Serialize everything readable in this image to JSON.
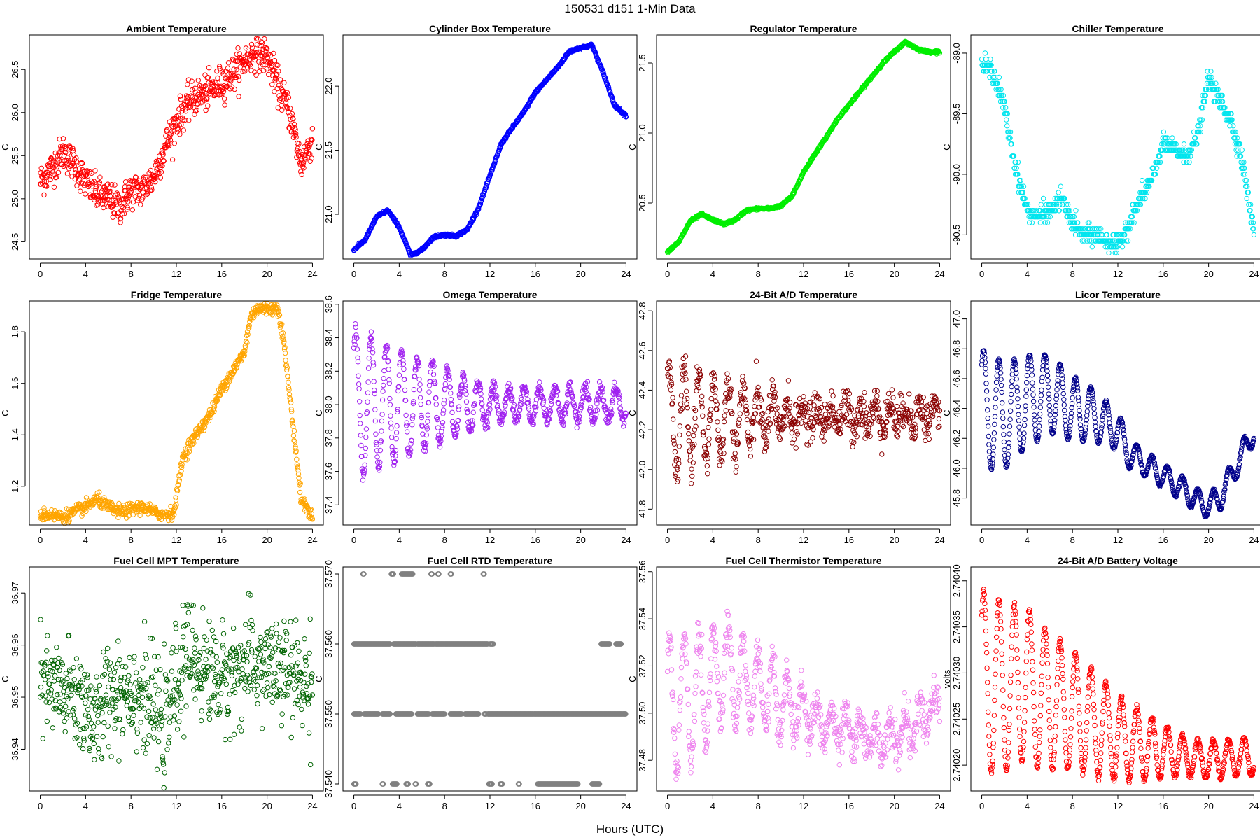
{
  "figure": {
    "suptitle": "150531    d151    1-Min Data",
    "xlabel": "Hours (UTC)"
  },
  "chart_data": [
    {
      "type": "scatter",
      "title": "Ambient Temperature",
      "ylabel": "C",
      "color": "#ff0000",
      "xlim": [
        0,
        24
      ],
      "ylim": [
        24.3,
        26.9
      ],
      "xticks": [
        "0",
        "4",
        "8",
        "12",
        "16",
        "20",
        "24"
      ],
      "yticks": [
        "24.5",
        "25.0",
        "25.5",
        "26.0",
        "26.5"
      ],
      "xtick_values": [
        0,
        4,
        8,
        12,
        16,
        20,
        24
      ],
      "ytick_values": [
        24.5,
        25.0,
        25.5,
        26.0,
        26.5
      ],
      "series": {
        "x": [
          0,
          1,
          2,
          3,
          4,
          5,
          6,
          7,
          8,
          9,
          10,
          11,
          12,
          13,
          14,
          15,
          16,
          17,
          18,
          19,
          20,
          21,
          22,
          23,
          24
        ],
        "y": [
          25.2,
          25.35,
          25.55,
          25.4,
          25.2,
          25.05,
          25.0,
          24.9,
          25.1,
          25.1,
          25.25,
          25.6,
          25.9,
          26.1,
          26.2,
          26.25,
          26.35,
          26.45,
          26.6,
          26.7,
          26.65,
          26.3,
          26.0,
          25.4,
          25.7
        ]
      },
      "noise": 0.1
    },
    {
      "type": "scatter",
      "title": "Cylinder Box Temperature",
      "ylabel": "C",
      "color": "#0000ff",
      "xlim": [
        0,
        24
      ],
      "ylim": [
        20.65,
        22.4
      ],
      "xticks": [
        "0",
        "4",
        "8",
        "12",
        "16",
        "20",
        "24"
      ],
      "yticks": [
        "21.0",
        "21.5",
        "22.0"
      ],
      "xtick_values": [
        0,
        4,
        8,
        12,
        16,
        20,
        24
      ],
      "ytick_values": [
        21.0,
        21.5,
        22.0
      ],
      "series": {
        "x": [
          0,
          1,
          2,
          3,
          4,
          5,
          6,
          7,
          8,
          9,
          10,
          11,
          12,
          13,
          14,
          15,
          16,
          17,
          18,
          19,
          20,
          21,
          22,
          23,
          24
        ],
        "y": [
          20.72,
          20.8,
          20.98,
          21.03,
          20.9,
          20.68,
          20.72,
          20.82,
          20.84,
          20.83,
          20.88,
          21.05,
          21.3,
          21.55,
          21.68,
          21.8,
          21.95,
          22.05,
          22.15,
          22.27,
          22.3,
          22.32,
          22.1,
          21.85,
          21.77
        ]
      },
      "noise": 0.005
    },
    {
      "type": "scatter",
      "title": "Regulator Temperature",
      "ylabel": "C",
      "color": "#00ee00",
      "xlim": [
        0,
        24
      ],
      "ylim": [
        20.1,
        21.7
      ],
      "xticks": [
        "0",
        "4",
        "8",
        "12",
        "16",
        "20",
        "24"
      ],
      "yticks": [
        "20.5",
        "21.0",
        "21.5"
      ],
      "xtick_values": [
        0,
        4,
        8,
        12,
        16,
        20,
        24
      ],
      "ytick_values": [
        20.5,
        21.0,
        21.5
      ],
      "series": {
        "x": [
          0,
          1,
          2,
          3,
          4,
          5,
          6,
          7,
          8,
          9,
          10,
          11,
          12,
          13,
          14,
          15,
          16,
          17,
          18,
          19,
          20,
          21,
          22,
          23,
          24
        ],
        "y": [
          20.15,
          20.22,
          20.37,
          20.42,
          20.38,
          20.35,
          20.38,
          20.45,
          20.46,
          20.46,
          20.48,
          20.55,
          20.72,
          20.85,
          20.97,
          21.1,
          21.2,
          21.3,
          21.4,
          21.5,
          21.58,
          21.65,
          21.6,
          21.58,
          21.58
        ]
      },
      "noise": 0.004
    },
    {
      "type": "scatter",
      "title": "Chiller Temperature",
      "ylabel": "C",
      "color": "#00e5ee",
      "xlim": [
        0,
        24
      ],
      "ylim": [
        -90.7,
        -88.85
      ],
      "xticks": [
        "0",
        "4",
        "8",
        "12",
        "16",
        "20",
        "24"
      ],
      "yticks": [
        "-89.0",
        "-89.5",
        "-90.0",
        "-90.5"
      ],
      "xtick_values": [
        0,
        4,
        8,
        12,
        16,
        20,
        24
      ],
      "ytick_values": [
        -89.0,
        -89.5,
        -90.0,
        -90.5
      ],
      "series": {
        "x": [
          0,
          1,
          2,
          3,
          4,
          5,
          6,
          7,
          8,
          9,
          10,
          11,
          12,
          13,
          14,
          15,
          16,
          17,
          18,
          19,
          20,
          21,
          22,
          23,
          24
        ],
        "y": [
          -89.1,
          -89.15,
          -89.45,
          -89.95,
          -90.3,
          -90.35,
          -90.3,
          -90.2,
          -90.4,
          -90.5,
          -90.5,
          -90.55,
          -90.6,
          -90.4,
          -90.2,
          -90.05,
          -89.75,
          -89.8,
          -89.85,
          -89.7,
          -89.2,
          -89.4,
          -89.55,
          -89.9,
          -90.5
        ]
      },
      "noise": 0.04,
      "quant": 0.05
    },
    {
      "type": "scatter",
      "title": "Fridge Temperature",
      "ylabel": "C",
      "color": "#ffa500",
      "xlim": [
        0,
        24
      ],
      "ylim": [
        1.05,
        1.92
      ],
      "xticks": [
        "0",
        "4",
        "8",
        "12",
        "16",
        "20",
        "24"
      ],
      "yticks": [
        "1.2",
        "1.4",
        "1.6",
        "1.8"
      ],
      "xtick_values": [
        0,
        4,
        8,
        12,
        16,
        20,
        24
      ],
      "ytick_values": [
        1.2,
        1.4,
        1.6,
        1.8
      ],
      "series": {
        "x": [
          0,
          1,
          2,
          3,
          4,
          5,
          6,
          7,
          8,
          9,
          10,
          11,
          11.8,
          12.5,
          13,
          14,
          15,
          16,
          17,
          18,
          18.5,
          19,
          20,
          21,
          21.5,
          22,
          22.5,
          23,
          24
        ],
        "y": [
          1.09,
          1.09,
          1.08,
          1.1,
          1.12,
          1.15,
          1.12,
          1.1,
          1.11,
          1.12,
          1.1,
          1.09,
          1.1,
          1.3,
          1.35,
          1.42,
          1.48,
          1.58,
          1.65,
          1.72,
          1.85,
          1.89,
          1.89,
          1.89,
          1.75,
          1.55,
          1.35,
          1.15,
          1.08
        ]
      },
      "noise": 0.012
    },
    {
      "type": "scatter",
      "title": "Omega Temperature",
      "ylabel": "C",
      "color": "#a020f0",
      "xlim": [
        0,
        24
      ],
      "ylim": [
        37.28,
        38.62
      ],
      "xticks": [
        "0",
        "4",
        "8",
        "12",
        "16",
        "20",
        "24"
      ],
      "yticks": [
        "37.4",
        "37.6",
        "37.8",
        "38.0",
        "38.2",
        "38.4",
        "38.6"
      ],
      "xtick_values": [
        0,
        4,
        8,
        12,
        16,
        20,
        24
      ],
      "ytick_values": [
        37.4,
        37.6,
        37.8,
        38.0,
        38.2,
        38.4,
        38.6
      ],
      "series": {
        "x": [
          0,
          24
        ],
        "y": [
          38.0,
          38.0
        ]
      },
      "osc": {
        "amp_start": 0.45,
        "amp_end": 0.1,
        "decay_until": 12,
        "period": 1.35
      },
      "noise": 0.02
    },
    {
      "type": "scatter",
      "title": "24-Bit A/D Temperature",
      "ylabel": "C",
      "color": "#8b0000",
      "xlim": [
        0,
        24
      ],
      "ylim": [
        41.72,
        42.85
      ],
      "xticks": [
        "0",
        "4",
        "8",
        "12",
        "16",
        "20",
        "24"
      ],
      "yticks": [
        "41.8",
        "42.0",
        "42.2",
        "42.4",
        "42.6",
        "42.8"
      ],
      "xtick_values": [
        0,
        4,
        8,
        12,
        16,
        20,
        24
      ],
      "ytick_values": [
        41.8,
        42.0,
        42.2,
        42.4,
        42.6,
        42.8
      ],
      "series": {
        "x": [
          0,
          24
        ],
        "y": [
          42.25,
          42.28
        ]
      },
      "osc": {
        "amp_start": 0.28,
        "amp_end": 0.05,
        "decay_until": 12,
        "period": 1.3
      },
      "noise": 0.05
    },
    {
      "type": "scatter",
      "title": "Licor Temperature",
      "ylabel": "C",
      "color": "#00008b",
      "xlim": [
        0,
        24
      ],
      "ylim": [
        45.62,
        47.12
      ],
      "xticks": [
        "0",
        "4",
        "8",
        "12",
        "16",
        "20",
        "24"
      ],
      "yticks": [
        "45.8",
        "46.0",
        "46.2",
        "46.4",
        "46.6",
        "46.8",
        "47.0"
      ],
      "xtick_values": [
        0,
        4,
        8,
        12,
        16,
        20,
        24
      ],
      "ytick_values": [
        45.8,
        46.0,
        46.2,
        46.4,
        46.6,
        46.8,
        47.0
      ],
      "series": {
        "x": [
          0,
          2,
          4,
          6,
          8,
          10,
          12,
          13,
          14,
          16,
          18,
          19,
          20,
          21,
          22,
          23,
          24
        ],
        "y": [
          46.4,
          46.35,
          46.45,
          46.5,
          46.4,
          46.35,
          46.25,
          46.1,
          46.05,
          45.95,
          45.85,
          45.78,
          45.75,
          45.8,
          45.95,
          46.1,
          46.25
        ]
      },
      "osc": {
        "amp_start": 0.4,
        "amp_end": 0.08,
        "decay_until": 14,
        "period": 1.35
      },
      "noise": 0.005
    },
    {
      "type": "scatter",
      "title": "Fuel Cell MPT Temperature",
      "ylabel": "C",
      "color": "#006400",
      "xlim": [
        0,
        24
      ],
      "ylim": [
        36.932,
        36.975
      ],
      "xticks": [
        "0",
        "4",
        "8",
        "12",
        "16",
        "20",
        "24"
      ],
      "yticks": [
        "36.94",
        "36.95",
        "36.96",
        "36.97"
      ],
      "xtick_values": [
        0,
        4,
        8,
        12,
        16,
        20,
        24
      ],
      "ytick_values": [
        36.94,
        36.95,
        36.96,
        36.97
      ],
      "series": {
        "x": [
          0,
          2,
          4,
          5,
          6,
          8,
          10,
          11,
          12,
          13,
          16,
          18,
          20,
          22,
          24
        ],
        "y": [
          36.952,
          36.951,
          36.949,
          36.944,
          36.951,
          36.952,
          36.948,
          36.944,
          36.953,
          36.958,
          36.953,
          36.956,
          36.956,
          36.954,
          36.952
        ]
      },
      "noise": 0.005
    },
    {
      "type": "scatter",
      "title": "Fuel Cell RTD Temperature",
      "ylabel": "C",
      "color": "#808080",
      "xlim": [
        0,
        24
      ],
      "ylim": [
        37.539,
        37.571
      ],
      "xticks": [
        "0",
        "4",
        "8",
        "12",
        "16",
        "20",
        "24"
      ],
      "yticks": [
        "37.540",
        "37.550",
        "37.560",
        "37.570"
      ],
      "xtick_values": [
        0,
        4,
        8,
        12,
        16,
        20,
        24
      ],
      "ytick_values": [
        37.54,
        37.55,
        37.56,
        37.57
      ],
      "levels": [
        {
          "value": 37.57,
          "ranges": [
            [
              0.8,
              0.9
            ],
            [
              3.3,
              3.5
            ],
            [
              4.2,
              5.2
            ],
            [
              6.8,
              6.9
            ],
            [
              7.4,
              7.5
            ],
            [
              8.5,
              8.6
            ],
            [
              11.4,
              11.5
            ]
          ]
        },
        {
          "value": 37.56,
          "ranges": [
            [
              0,
              3.2
            ],
            [
              3.5,
              5.5
            ],
            [
              5.6,
              7.1
            ],
            [
              7.2,
              11.8
            ],
            [
              12.0,
              12.3
            ],
            [
              21.8,
              22.6
            ],
            [
              23.1,
              23.6
            ]
          ]
        },
        {
          "value": 37.55,
          "ranges": [
            [
              0,
              0.6
            ],
            [
              0.9,
              2.2
            ],
            [
              2.5,
              3.2
            ],
            [
              3.7,
              5.1
            ],
            [
              5.6,
              6.6
            ],
            [
              6.9,
              8.0
            ],
            [
              8.5,
              9.5
            ],
            [
              9.8,
              11.0
            ],
            [
              11.5,
              11.7
            ],
            [
              11.8,
              24.0
            ]
          ]
        },
        {
          "value": 37.54,
          "ranges": [
            [
              0,
              0.2
            ],
            [
              2.5,
              2.6
            ],
            [
              3.4,
              3.8
            ],
            [
              4.6,
              4.8
            ],
            [
              5.4,
              5.5
            ],
            [
              6.5,
              6.7
            ],
            [
              11.9,
              12.2
            ],
            [
              12.9,
              13.1
            ],
            [
              14.5,
              14.6
            ],
            [
              16.2,
              19.8
            ],
            [
              21.0,
              21.7
            ]
          ]
        }
      ]
    },
    {
      "type": "scatter",
      "title": "Fuel Cell Thermistor Temperature",
      "ylabel": "C",
      "color": "#ee82ee",
      "xlim": [
        0,
        24
      ],
      "ylim": [
        37.467,
        37.562
      ],
      "xticks": [
        "0",
        "4",
        "8",
        "12",
        "16",
        "20",
        "24"
      ],
      "yticks": [
        "37.48",
        "37.50",
        "37.52",
        "37.54",
        "37.56"
      ],
      "xtick_values": [
        0,
        4,
        8,
        12,
        16,
        20,
        24
      ],
      "ytick_values": [
        37.48,
        37.5,
        37.52,
        37.54,
        37.56
      ],
      "series": {
        "x": [
          0,
          2,
          4,
          5,
          6,
          8,
          10,
          12,
          14,
          16,
          18,
          19,
          20,
          22,
          23,
          24
        ],
        "y": [
          37.503,
          37.505,
          37.515,
          37.52,
          37.515,
          37.51,
          37.505,
          37.5,
          37.495,
          37.492,
          37.49,
          37.488,
          37.49,
          37.495,
          37.5,
          37.502
        ]
      },
      "osc": {
        "amp_start": 0.03,
        "amp_end": 0.007,
        "decay_until": 13,
        "period": 1.3
      },
      "noise": 0.004
    },
    {
      "type": "scatter",
      "title": "24-Bit A/D Battery Voltage",
      "ylabel": "volts",
      "color": "#ff0000",
      "xlim": [
        0,
        24
      ],
      "ylim": [
        2.740172,
        2.740415
      ],
      "xticks": [
        "0",
        "4",
        "8",
        "12",
        "16",
        "20",
        "24"
      ],
      "yticks": [
        "2.74020",
        "2.74025",
        "2.74030",
        "2.74035",
        "2.74040"
      ],
      "xtick_values": [
        0,
        4,
        8,
        12,
        16,
        20,
        24
      ],
      "ytick_values": [
        2.7402,
        2.74025,
        2.7403,
        2.74035,
        2.7404
      ],
      "series": {
        "x": [
          0,
          2,
          4,
          5,
          6,
          8,
          10,
          12,
          14,
          16,
          18,
          20,
          22,
          24
        ],
        "y": [
          2.74029,
          2.740285,
          2.74029,
          2.740275,
          2.74027,
          2.74026,
          2.740245,
          2.74023,
          2.740222,
          2.740215,
          2.74021,
          2.740205,
          2.740208,
          2.74021
        ]
      },
      "osc": {
        "amp_start": 0.0001,
        "amp_end": 2e-05,
        "decay_until": 18,
        "period": 1.35
      },
      "noise": 2e-06
    }
  ]
}
